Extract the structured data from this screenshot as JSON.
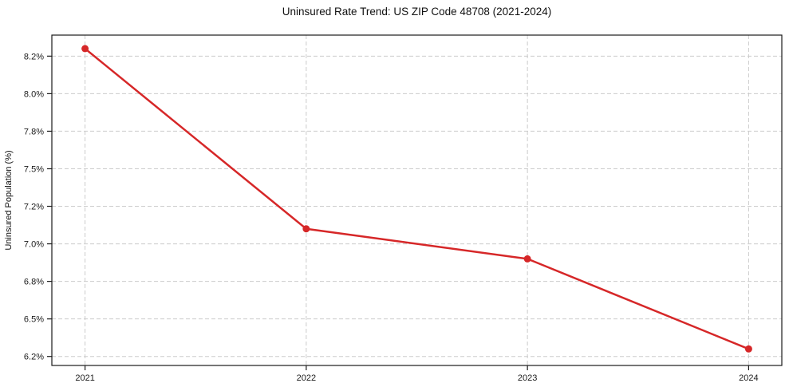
{
  "chart_data": {
    "type": "line",
    "title": "Uninsured Rate Trend: US ZIP Code 48708 (2021-2024)",
    "xlabel": "",
    "ylabel": "Uninsured Population (%)",
    "x": [
      2021,
      2022,
      2023,
      2024
    ],
    "x_tick_labels": [
      "2021",
      "2022",
      "2023",
      "2024"
    ],
    "series": [
      {
        "name": "uninsured-rate",
        "values": [
          8.3,
          7.1,
          6.9,
          6.3
        ],
        "color": "#d62728"
      }
    ],
    "xlim": [
      2020.85,
      2024.15
    ],
    "ylim": [
      6.19,
      8.39
    ],
    "y_ticks": [
      6.25,
      6.5,
      6.75,
      7.0,
      7.25,
      7.5,
      7.75,
      8.0,
      8.25
    ],
    "y_tick_labels": [
      "6.2%",
      "6.5%",
      "6.8%",
      "7.0%",
      "7.2%",
      "7.5%",
      "7.8%",
      "8.0%",
      "8.2%"
    ],
    "grid": true,
    "grid_style": "dashed",
    "grid_color": "#cccccc",
    "spine_color": "#1a1a1a",
    "tick_label_color": "#1a1a1a",
    "legend": "none",
    "marker": "circle"
  }
}
